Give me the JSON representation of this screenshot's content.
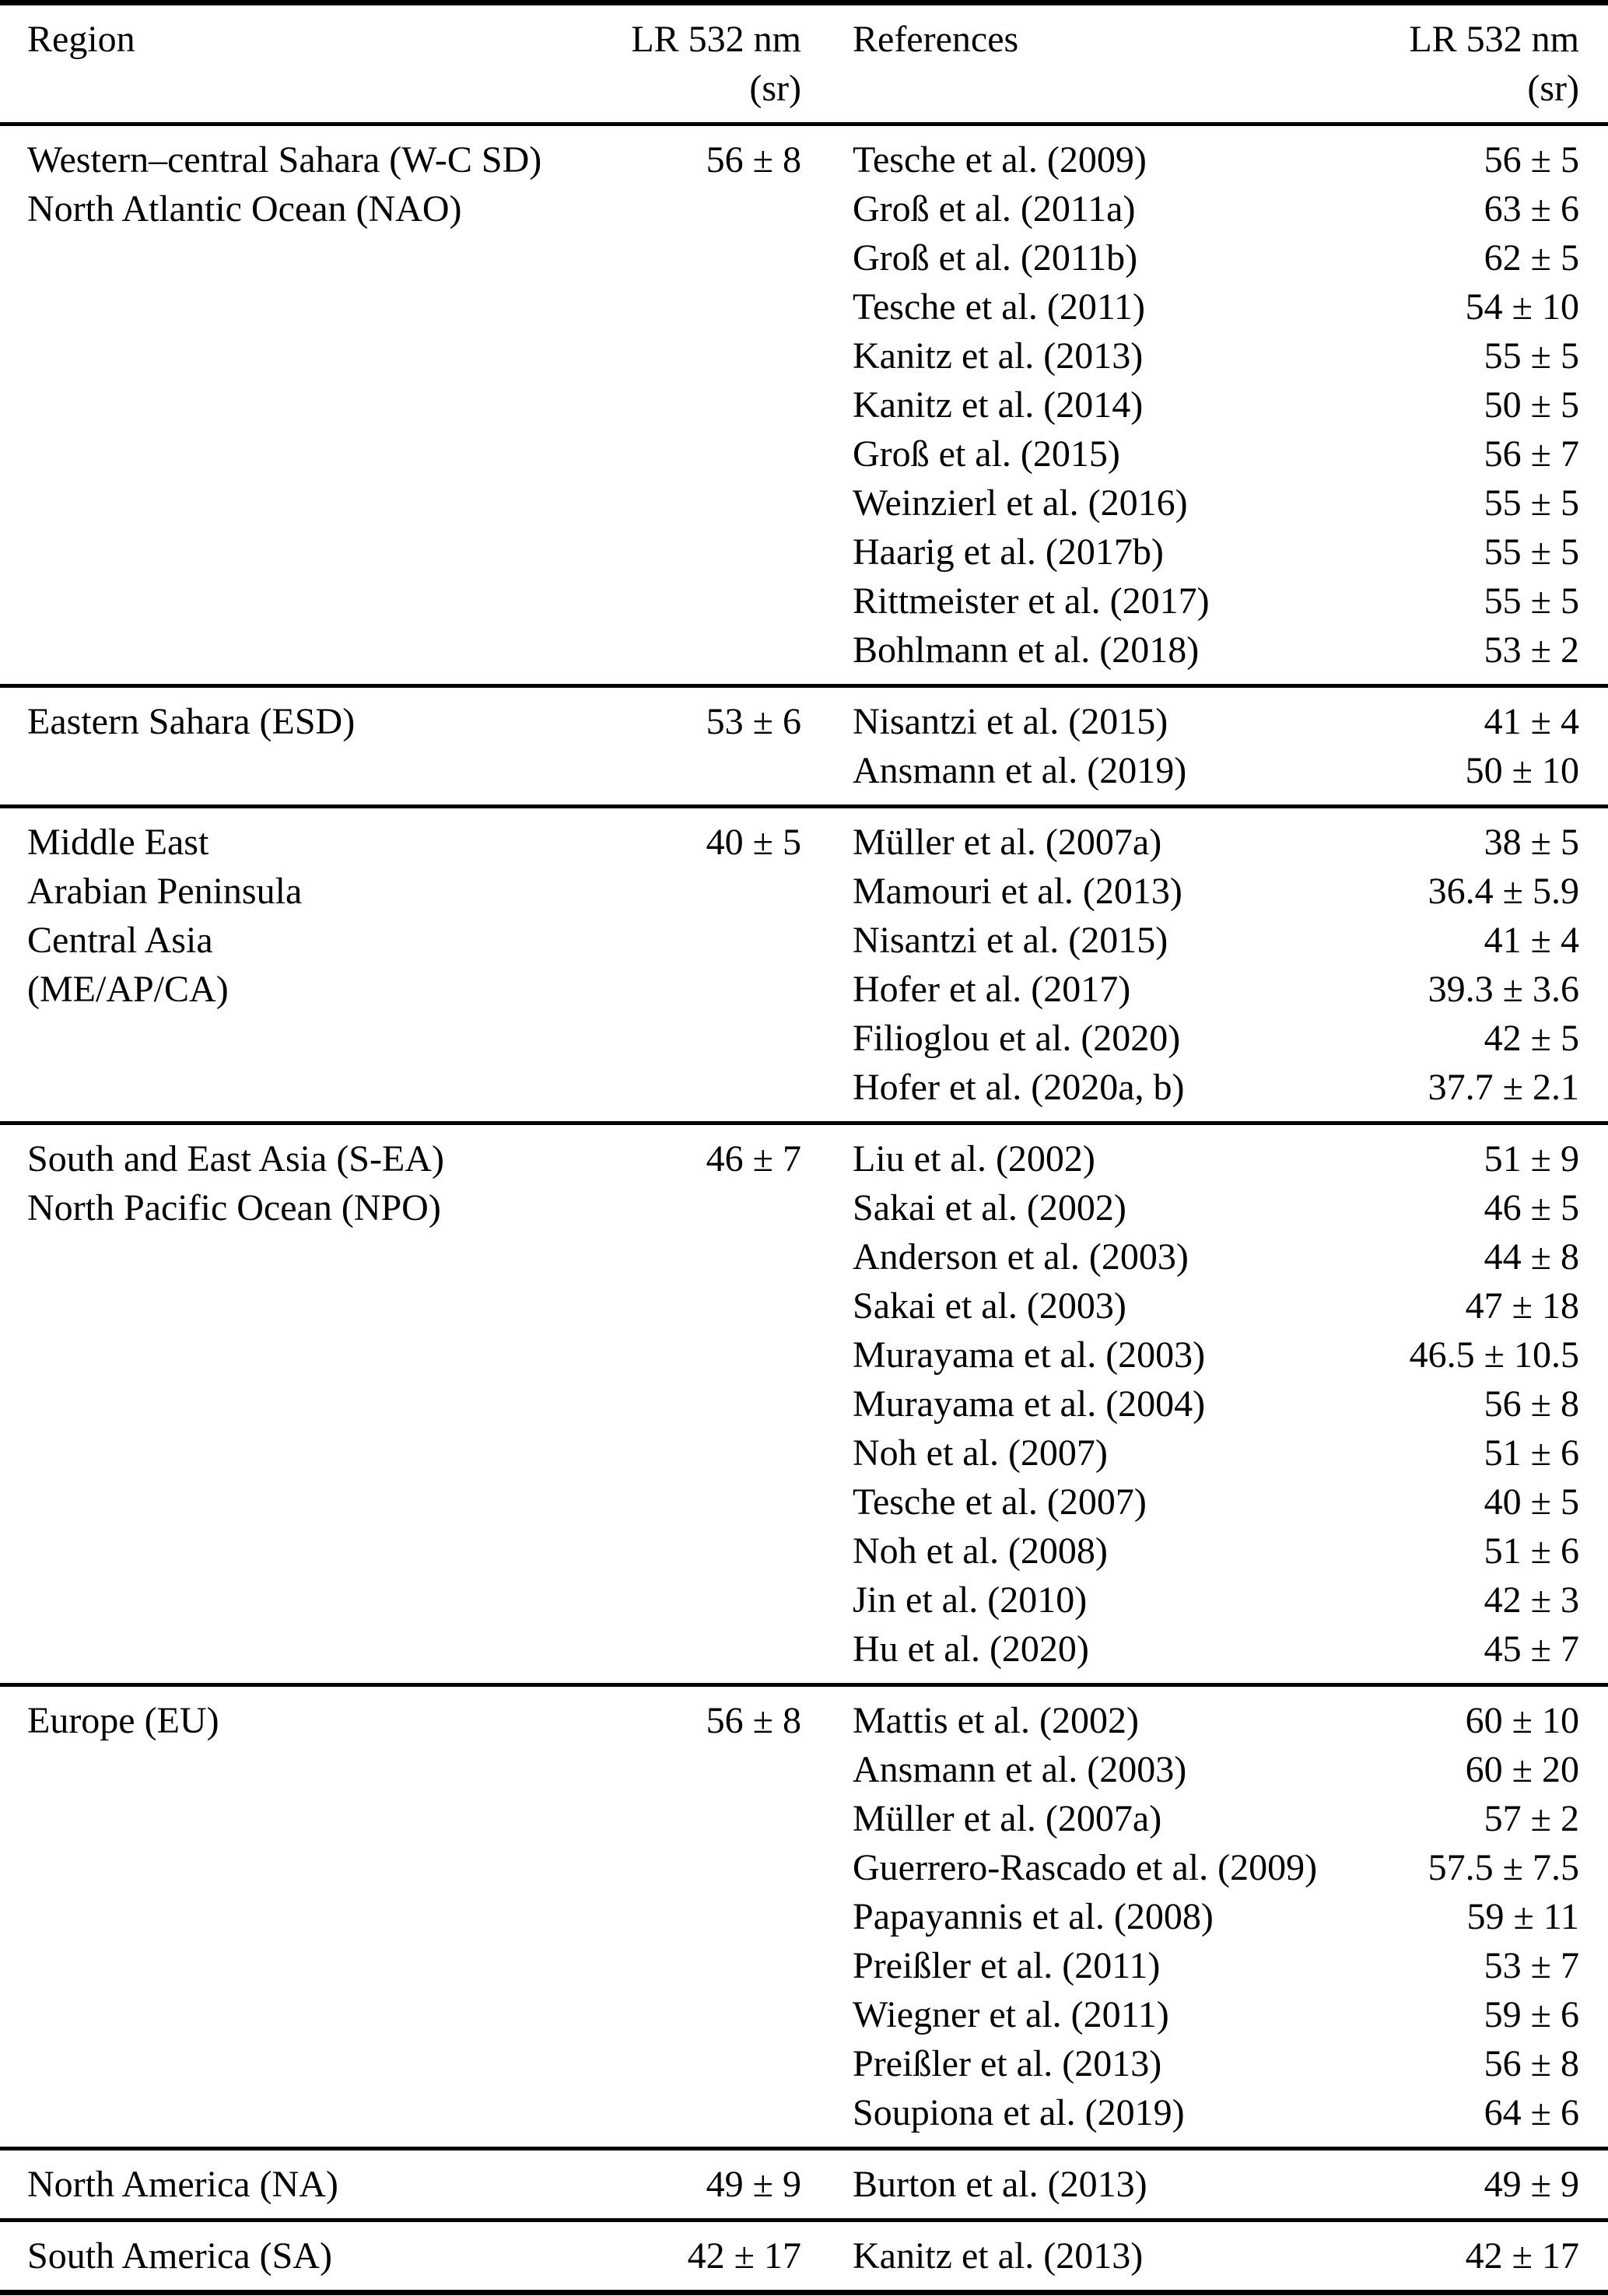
{
  "table": {
    "headers": {
      "region": "Region",
      "lr": "LR 532 nm",
      "lr_unit": "(sr)",
      "references": "References",
      "lr2": "LR 532 nm",
      "lr2_unit": "(sr)"
    },
    "sections": [
      {
        "region_lines": [
          "Western–central Sahara (W-C SD)",
          "North Atlantic Ocean (NAO)"
        ],
        "lr": "56 ± 8",
        "refs": [
          {
            "name": "Tesche et al. (2009)",
            "lr": "56 ± 5"
          },
          {
            "name": "Groß et al. (2011a)",
            "lr": "63 ± 6"
          },
          {
            "name": "Groß et al. (2011b)",
            "lr": "62 ± 5"
          },
          {
            "name": "Tesche et al. (2011)",
            "lr": "54 ± 10"
          },
          {
            "name": "Kanitz et al. (2013)",
            "lr": "55 ± 5"
          },
          {
            "name": "Kanitz et al. (2014)",
            "lr": "50 ± 5"
          },
          {
            "name": "Groß et al. (2015)",
            "lr": "56 ± 7"
          },
          {
            "name": "Weinzierl et al. (2016)",
            "lr": "55 ± 5"
          },
          {
            "name": "Haarig et al. (2017b)",
            "lr": "55 ± 5"
          },
          {
            "name": "Rittmeister et al. (2017)",
            "lr": "55 ± 5"
          },
          {
            "name": "Bohlmann et al. (2018)",
            "lr": "53 ± 2"
          }
        ]
      },
      {
        "region_lines": [
          "Eastern Sahara (ESD)"
        ],
        "lr": "53 ± 6",
        "refs": [
          {
            "name": "Nisantzi et al. (2015)",
            "lr": "41 ± 4"
          },
          {
            "name": "Ansmann et al. (2019)",
            "lr": "50 ± 10"
          }
        ]
      },
      {
        "region_lines": [
          "Middle East",
          "Arabian Peninsula",
          "Central Asia",
          "(ME/AP/CA)"
        ],
        "lr": "40 ± 5",
        "refs": [
          {
            "name": "Müller et al. (2007a)",
            "lr": "38 ± 5"
          },
          {
            "name": "Mamouri et al. (2013)",
            "lr": "36.4 ± 5.9"
          },
          {
            "name": "Nisantzi et al. (2015)",
            "lr": "41 ± 4"
          },
          {
            "name": "Hofer et al. (2017)",
            "lr": "39.3 ± 3.6"
          },
          {
            "name": "Filioglou et al. (2020)",
            "lr": "42 ± 5"
          },
          {
            "name": "Hofer et al. (2020a, b)",
            "lr": "37.7 ± 2.1"
          }
        ]
      },
      {
        "region_lines": [
          "South and East Asia (S-EA)",
          "North Pacific Ocean (NPO)"
        ],
        "lr": "46 ± 7",
        "refs": [
          {
            "name": "Liu et al. (2002)",
            "lr": "51 ± 9"
          },
          {
            "name": "Sakai et al. (2002)",
            "lr": "46 ± 5"
          },
          {
            "name": "Anderson et al. (2003)",
            "lr": "44 ± 8"
          },
          {
            "name": "Sakai et al. (2003)",
            "lr": "47 ± 18"
          },
          {
            "name": "Murayama et al. (2003)",
            "lr": "46.5 ± 10.5"
          },
          {
            "name": "Murayama et al. (2004)",
            "lr": "56 ± 8"
          },
          {
            "name": "Noh et al. (2007)",
            "lr": "51 ± 6"
          },
          {
            "name": "Tesche et al. (2007)",
            "lr": "40 ± 5"
          },
          {
            "name": "Noh et al. (2008)",
            "lr": "51 ± 6"
          },
          {
            "name": "Jin et al. (2010)",
            "lr": "42 ± 3"
          },
          {
            "name": "Hu et al. (2020)",
            "lr": "45 ± 7"
          }
        ]
      },
      {
        "region_lines": [
          "Europe (EU)"
        ],
        "lr": "56 ± 8",
        "refs": [
          {
            "name": "Mattis et al. (2002)",
            "lr": "60 ± 10"
          },
          {
            "name": "Ansmann et al. (2003)",
            "lr": "60 ± 20"
          },
          {
            "name": "Müller et al. (2007a)",
            "lr": "57 ± 2"
          },
          {
            "name": "Guerrero-Rascado et al. (2009)",
            "lr": "57.5 ± 7.5"
          },
          {
            "name": "Papayannis et al. (2008)",
            "lr": "59 ± 11"
          },
          {
            "name": "Preißler et al. (2011)",
            "lr": "53 ± 7"
          },
          {
            "name": "Wiegner et al. (2011)",
            "lr": "59 ± 6"
          },
          {
            "name": "Preißler et al. (2013)",
            "lr": "56 ± 8"
          },
          {
            "name": "Soupiona et al. (2019)",
            "lr": "64 ± 6"
          }
        ]
      },
      {
        "region_lines": [
          "North America (NA)"
        ],
        "lr": "49 ± 9",
        "refs": [
          {
            "name": "Burton et al. (2013)",
            "lr": "49 ± 9"
          }
        ]
      },
      {
        "region_lines": [
          "South America (SA)"
        ],
        "lr": "42 ± 17",
        "refs": [
          {
            "name": "Kanitz et al. (2013)",
            "lr": "42 ± 17"
          }
        ]
      }
    ]
  }
}
